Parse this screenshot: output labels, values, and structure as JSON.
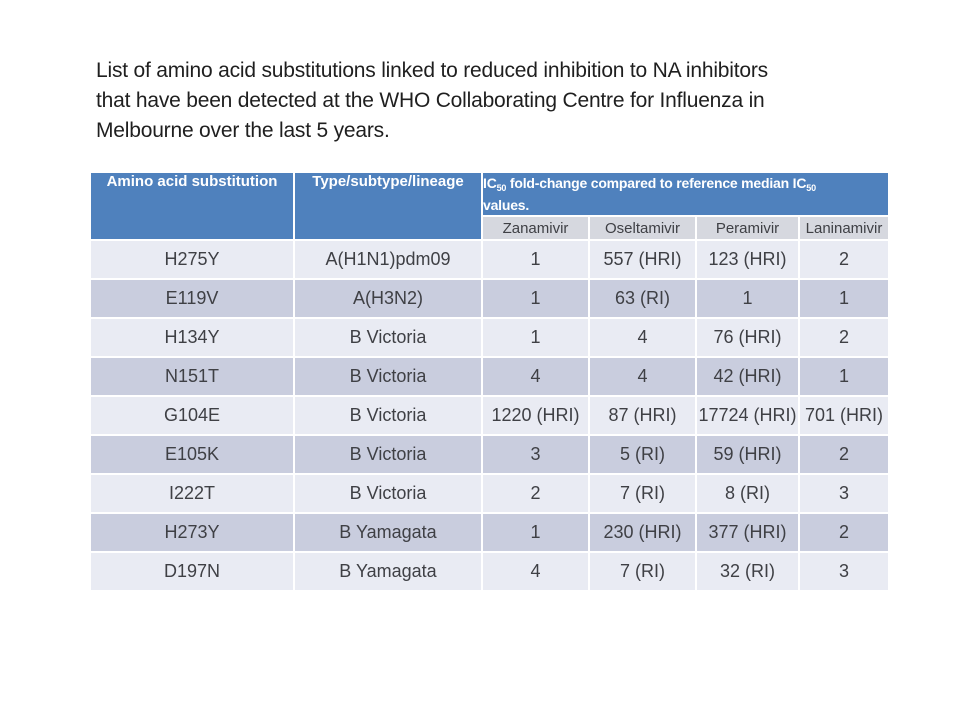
{
  "title": {
    "lines": [
      "List of amino acid substitutions linked to reduced inhibition to NA inhibitors",
      "that have been detected at the WHO Collaborating Centre for Influenza in",
      "Melbourne over the last 5 years."
    ]
  },
  "table": {
    "header": {
      "substitution": "Amino acid substitution",
      "lineage": "Type/subtype/lineage",
      "ic50": {
        "t1": "IC",
        "s1": "50",
        "t2": " fold-change compared to reference median IC",
        "s2": "50",
        "t3": "values."
      }
    },
    "drugs": [
      "Zanamivir",
      "Oseltamivir",
      "Peramivir",
      "Laninamivir"
    ],
    "rows": [
      {
        "substitution": "H275Y",
        "lineage": "A(H1N1)pdm09",
        "zanamivir": "1",
        "oseltamivir": "557 (HRI)",
        "peramivir": "123 (HRI)",
        "laninamivir": "2"
      },
      {
        "substitution": "E119V",
        "lineage": "A(H3N2)",
        "zanamivir": "1",
        "oseltamivir": "63 (RI)",
        "peramivir": "1",
        "laninamivir": "1"
      },
      {
        "substitution": "H134Y",
        "lineage": "B Victoria",
        "zanamivir": "1",
        "oseltamivir": "4",
        "peramivir": "76 (HRI)",
        "laninamivir": "2"
      },
      {
        "substitution": "N151T",
        "lineage": "B Victoria",
        "zanamivir": "4",
        "oseltamivir": "4",
        "peramivir": "42 (HRI)",
        "laninamivir": "1"
      },
      {
        "substitution": "G104E",
        "lineage": "B Victoria",
        "zanamivir": "1220 (HRI)",
        "oseltamivir": "87 (HRI)",
        "peramivir": "17724 (HRI)",
        "laninamivir": "701 (HRI)"
      },
      {
        "substitution": "E105K",
        "lineage": "B Victoria",
        "zanamivir": "3",
        "oseltamivir": "5 (RI)",
        "peramivir": "59 (HRI)",
        "laninamivir": "2"
      },
      {
        "substitution": "I222T",
        "lineage": "B Victoria",
        "zanamivir": "2",
        "oseltamivir": "7 (RI)",
        "peramivir": "8 (RI)",
        "laninamivir": "3"
      },
      {
        "substitution": "H273Y",
        "lineage": "B Yamagata",
        "zanamivir": "1",
        "oseltamivir": "230 (HRI)",
        "peramivir": "377 (HRI)",
        "laninamivir": "2"
      },
      {
        "substitution": "D197N",
        "lineage": "B Yamagata",
        "zanamivir": "4",
        "oseltamivir": "7 (RI)",
        "peramivir": "32 (RI)",
        "laninamivir": "3"
      }
    ]
  },
  "colors": {
    "slide-bg": "#ffffff",
    "title-text": "#1f1f1f",
    "header-bg": "#4f81bd",
    "header-text": "#ffffff",
    "subheader-bg": "#d6d8df",
    "band-light": "#e9ebf3",
    "band-dark": "#c9cdde",
    "body-text": "#3f4045"
  }
}
